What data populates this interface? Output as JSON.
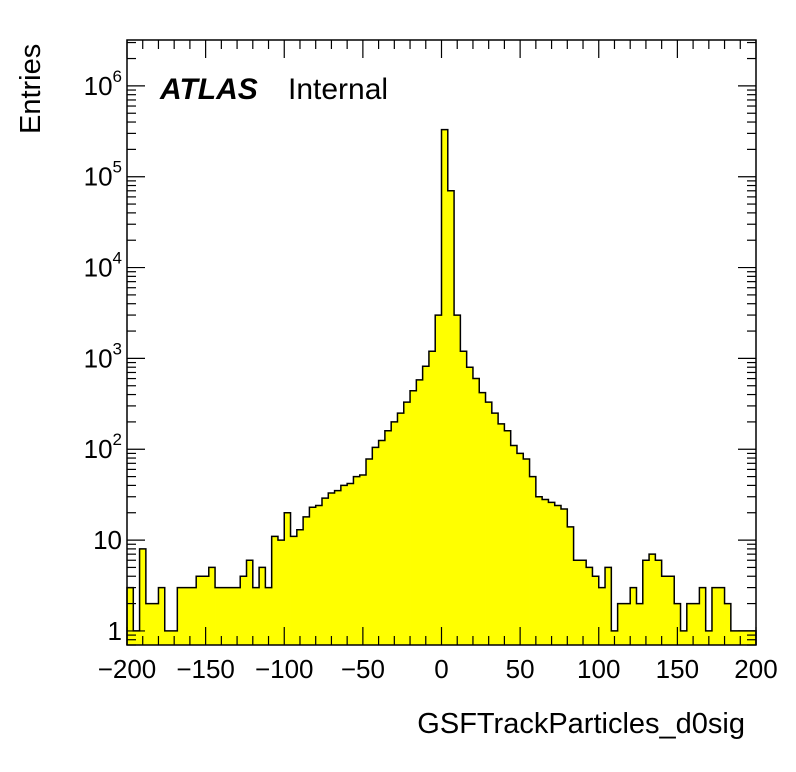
{
  "chart_data": {
    "type": "bar",
    "style": "histogram",
    "fill_color": "#ffff00",
    "edge_color": "#000000",
    "xlabel": "GSFTrackParticles_d0sig",
    "ylabel": "Entries",
    "xlim": [
      -200,
      200
    ],
    "ylim": [
      0.7,
      3200000
    ],
    "yscale": "log",
    "bin_width": 4,
    "bin_low_edges": [
      -200,
      -196,
      -192,
      -188,
      -184,
      -180,
      -176,
      -172,
      -168,
      -164,
      -160,
      -156,
      -152,
      -148,
      -144,
      -140,
      -136,
      -132,
      -128,
      -124,
      -120,
      -116,
      -112,
      -108,
      -104,
      -100,
      -96,
      -92,
      -88,
      -84,
      -80,
      -76,
      -72,
      -68,
      -64,
      -60,
      -56,
      -52,
      -48,
      -44,
      -40,
      -36,
      -32,
      -28,
      -24,
      -20,
      -16,
      -12,
      -8,
      -4,
      0,
      4,
      8,
      12,
      16,
      20,
      24,
      28,
      32,
      36,
      40,
      44,
      48,
      52,
      56,
      60,
      64,
      68,
      72,
      76,
      80,
      84,
      88,
      92,
      96,
      100,
      104,
      108,
      112,
      116,
      120,
      124,
      128,
      132,
      136,
      140,
      144,
      148,
      152,
      156,
      160,
      164,
      168,
      172,
      176,
      180,
      184,
      188,
      192,
      196
    ],
    "values": [
      3,
      1,
      8,
      2,
      2,
      3,
      1,
      1,
      3,
      3,
      3,
      4,
      4,
      5,
      3,
      3,
      3,
      3,
      4,
      6,
      3,
      5,
      3,
      11,
      10,
      20,
      11,
      13,
      18,
      23,
      24,
      29,
      33,
      35,
      40,
      42,
      50,
      52,
      78,
      105,
      125,
      160,
      200,
      250,
      330,
      440,
      580,
      820,
      1200,
      3000,
      330000,
      70000,
      3000,
      1200,
      800,
      600,
      420,
      330,
      250,
      190,
      160,
      110,
      90,
      78,
      50,
      30,
      28,
      26,
      24,
      22,
      14,
      6,
      6,
      5,
      4,
      3,
      5,
      1,
      2,
      2,
      3,
      2,
      6,
      7,
      6,
      4,
      4,
      2,
      1,
      2,
      2,
      3,
      1,
      3,
      3,
      2,
      1,
      1,
      1,
      1
    ],
    "x_ticks": [
      "−200",
      "−150",
      "−100",
      "−50",
      "0",
      "50",
      "100",
      "150",
      "200"
    ],
    "x_tick_values": [
      -200,
      -150,
      -100,
      -50,
      0,
      50,
      100,
      150,
      200
    ],
    "y_tick_values": [
      1,
      10,
      100,
      1000,
      10000,
      100000,
      1000000
    ],
    "y_ticks": [
      {
        "base": "1",
        "exp": ""
      },
      {
        "base": "10",
        "exp": ""
      },
      {
        "base": "10",
        "exp": "2"
      },
      {
        "base": "10",
        "exp": "3"
      },
      {
        "base": "10",
        "exp": "4"
      },
      {
        "base": "10",
        "exp": "5"
      },
      {
        "base": "10",
        "exp": "6"
      }
    ],
    "annotations": {
      "experiment": "ATLAS",
      "status": "Internal"
    }
  }
}
